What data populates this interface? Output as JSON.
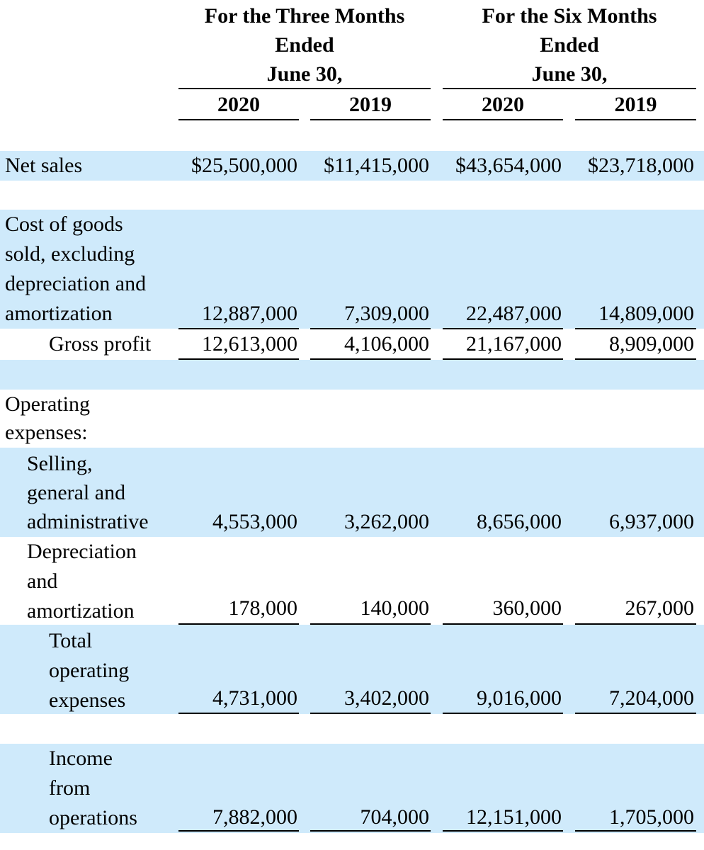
{
  "header": {
    "three_months": [
      "For the Three Months",
      "Ended",
      "June 30,"
    ],
    "six_months": [
      "For the Six Months",
      "Ended",
      "June 30,"
    ],
    "years": [
      "2020",
      "2019",
      "2020",
      "2019"
    ]
  },
  "rows": {
    "net_sales": {
      "label": [
        "Net sales"
      ],
      "values": [
        "$25,500,000",
        "$11,415,000",
        "$43,654,000",
        "$23,718,000"
      ]
    },
    "cogs": {
      "label": [
        "Cost of goods",
        "sold, excluding",
        "depreciation and",
        "amortization"
      ],
      "values": [
        "12,887,000",
        "7,309,000",
        "22,487,000",
        "14,809,000"
      ]
    },
    "gross_profit": {
      "label": [
        "Gross profit"
      ],
      "values": [
        "12,613,000",
        "4,106,000",
        "21,167,000",
        "8,909,000"
      ]
    },
    "opex_heading": {
      "label": [
        "Operating",
        "expenses:"
      ]
    },
    "sga": {
      "label": [
        "Selling,",
        "general and",
        "administrative"
      ],
      "values": [
        "4,553,000",
        "3,262,000",
        "8,656,000",
        "6,937,000"
      ]
    },
    "da": {
      "label": [
        "Depreciation",
        "and",
        "amortization"
      ],
      "values": [
        "178,000",
        "140,000",
        "360,000",
        "267,000"
      ]
    },
    "total_opex": {
      "label": [
        "Total",
        "operating",
        "expenses"
      ],
      "values": [
        "4,731,000",
        "3,402,000",
        "9,016,000",
        "7,204,000"
      ]
    },
    "income_ops": {
      "label": [
        "Income",
        "from",
        "operations"
      ],
      "values": [
        "7,882,000",
        "704,000",
        "12,151,000",
        "1,705,000"
      ]
    }
  }
}
